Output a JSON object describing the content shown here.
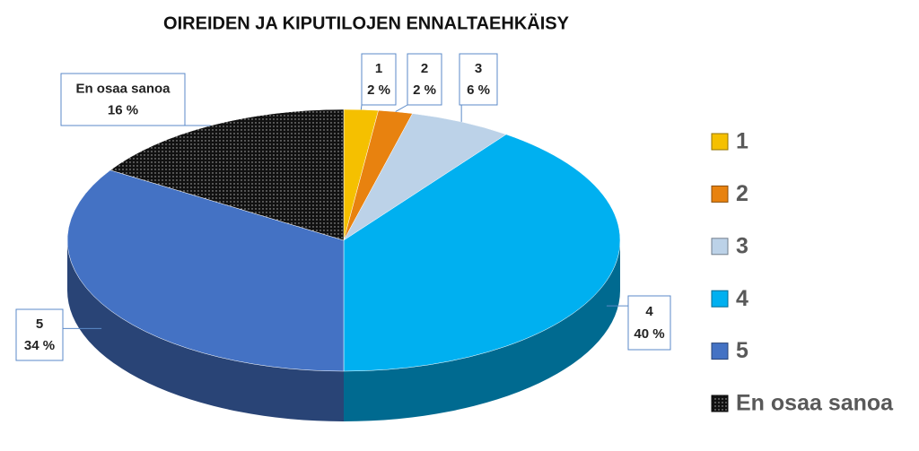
{
  "chart_data": {
    "type": "pie",
    "title": "OIREIDEN JA KIPUTILOJEN ENNALTAEHKÄISY",
    "categories": [
      "1",
      "2",
      "3",
      "4",
      "5",
      "En osaa sanoa"
    ],
    "values": [
      2,
      2,
      6,
      40,
      34,
      16
    ],
    "value_labels": [
      "2 %",
      "2 %",
      "6 %",
      "40 %",
      "34 %",
      "16 %"
    ],
    "colors": [
      "#f5c000",
      "#e8820f",
      "#bcd2e8",
      "#00b0f0",
      "#4472c4",
      "#111111"
    ],
    "legend": "right"
  }
}
